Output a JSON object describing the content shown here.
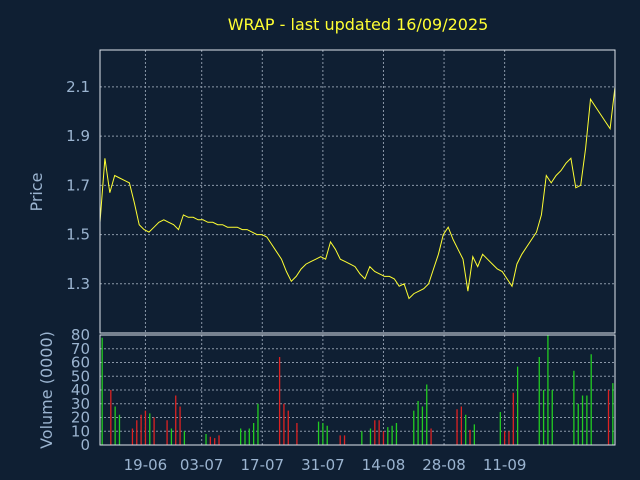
{
  "chart_data": [
    {
      "type": "line",
      "title": "WRAP - last updated 16/09/2025",
      "ylabel": "Price",
      "ylim": [
        1.1,
        2.25
      ],
      "yticks": [
        "1.3",
        "1.5",
        "1.7",
        "1.9",
        "2.1"
      ],
      "ytick_values": [
        1.3,
        1.5,
        1.7,
        1.9,
        2.1
      ],
      "grid": true,
      "line_color": "#ffff33",
      "series": [
        {
          "values": [
            1.55,
            1.81,
            1.67,
            1.74,
            1.73,
            1.72,
            1.71,
            1.63,
            1.54,
            1.52,
            1.51,
            1.53,
            1.55,
            1.56,
            1.55,
            1.54,
            1.52,
            1.58,
            1.57,
            1.57,
            1.56,
            1.56,
            1.55,
            1.55,
            1.54,
            1.54,
            1.53,
            1.53,
            1.53,
            1.52,
            1.52,
            1.51,
            1.5,
            1.5,
            1.49,
            1.46,
            1.43,
            1.4,
            1.35,
            1.31,
            1.33,
            1.36,
            1.38,
            1.39,
            1.4,
            1.41,
            1.4,
            1.47,
            1.44,
            1.4,
            1.39,
            1.38,
            1.37,
            1.34,
            1.32,
            1.37,
            1.35,
            1.34,
            1.33,
            1.33,
            1.32,
            1.29,
            1.3,
            1.24,
            1.26,
            1.27,
            1.28,
            1.3,
            1.36,
            1.42,
            1.5,
            1.53,
            1.48,
            1.44,
            1.4,
            1.27,
            1.41,
            1.37,
            1.42,
            1.4,
            1.38,
            1.36,
            1.35,
            1.32,
            1.29,
            1.38,
            1.42,
            1.45,
            1.48,
            1.51,
            1.58,
            1.74,
            1.71,
            1.74,
            1.76,
            1.79,
            1.81,
            1.69,
            1.7,
            1.85,
            2.05,
            2.02,
            1.99,
            1.96,
            1.93,
            2.1
          ]
        }
      ]
    },
    {
      "type": "bar",
      "ylabel": "Volume (0000)",
      "ylim": [
        0,
        80
      ],
      "yticks": [
        "0",
        "10",
        "20",
        "30",
        "40",
        "50",
        "60",
        "70",
        "80"
      ],
      "ytick_values": [
        0,
        10,
        20,
        30,
        40,
        50,
        60,
        70,
        80
      ],
      "grid": true,
      "categories": [
        "19-06",
        "03-07",
        "17-07",
        "31-07",
        "14-08",
        "28-08",
        "11-09"
      ],
      "category_index": [
        10,
        23,
        37,
        51,
        65,
        79,
        93
      ],
      "up_color": "#22cc22",
      "down_color": "#dd2222",
      "volumes": [
        78,
        0,
        40,
        28,
        22,
        0,
        0,
        12,
        18,
        22,
        25,
        23,
        20,
        0,
        0,
        18,
        12,
        36,
        28,
        10,
        0,
        0,
        0,
        0,
        8,
        6,
        5,
        7,
        0,
        0,
        0,
        0,
        12,
        10,
        12,
        16,
        30,
        0,
        0,
        0,
        0,
        64,
        30,
        25,
        0,
        16,
        0,
        0,
        0,
        0,
        17,
        16,
        14,
        0,
        0,
        7,
        7,
        0,
        0,
        0,
        10,
        0,
        12,
        18,
        18,
        10,
        13,
        14,
        16,
        0,
        0,
        0,
        25,
        32,
        28,
        44,
        12,
        0,
        0,
        0,
        0,
        0,
        26,
        28,
        22,
        11,
        15,
        0,
        0,
        0,
        0,
        0,
        24,
        10,
        10,
        38,
        57,
        0,
        0,
        0,
        0,
        64,
        40,
        80,
        40,
        0,
        0,
        0,
        0,
        54,
        30,
        36,
        36,
        66,
        0,
        0,
        0,
        40,
        45
      ],
      "directions": [
        "u",
        "u",
        "d",
        "u",
        "u",
        "u",
        "u",
        "d",
        "d",
        "d",
        "d",
        "u",
        "d",
        "d",
        "d",
        "d",
        "u",
        "d",
        "d",
        "u",
        "d",
        "d",
        "d",
        "d",
        "u",
        "d",
        "d",
        "d",
        "d",
        "d",
        "d",
        "d",
        "u",
        "u",
        "u",
        "u",
        "u",
        "d",
        "d",
        "d",
        "d",
        "d",
        "d",
        "d",
        "d",
        "d",
        "d",
        "d",
        "d",
        "d",
        "u",
        "u",
        "u",
        "d",
        "d",
        "d",
        "d",
        "d",
        "d",
        "d",
        "u",
        "d",
        "u",
        "d",
        "d",
        "d",
        "u",
        "u",
        "u",
        "d",
        "d",
        "d",
        "u",
        "u",
        "u",
        "u",
        "d",
        "d",
        "d",
        "d",
        "d",
        "d",
        "d",
        "d",
        "u",
        "d",
        "u",
        "d",
        "d",
        "d",
        "d",
        "d",
        "u",
        "d",
        "d",
        "d",
        "u",
        "u",
        "u",
        "u",
        "u",
        "u",
        "u",
        "u",
        "u",
        "u",
        "u",
        "u",
        "u",
        "u",
        "u",
        "u",
        "u",
        "u",
        "u",
        "u",
        "u",
        "d",
        "u"
      ]
    }
  ]
}
